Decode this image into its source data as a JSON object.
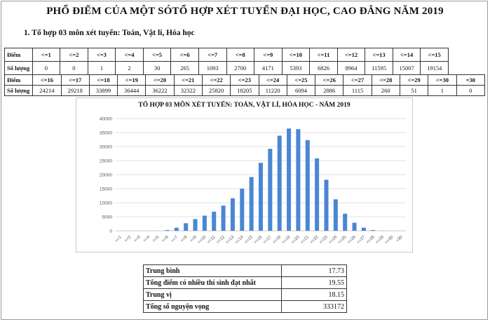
{
  "title": "PHỔ ĐIỂM CỦA MỘT SÓTỔ HỢP XÉT TUYỂN ĐẠI HỌC, CAO ĐẲNG NĂM 2019",
  "section": "1. Tổ hợp 03 môn xét tuyển: Toán, Vật lí, Hóa học",
  "table1": {
    "row_label_1": "Điểm",
    "row_label_2": "Số lượng",
    "headers": [
      "<=1",
      "<=2",
      "<=3",
      "<=4",
      "<=5",
      "<=6",
      "<=7",
      "<=8",
      "<=9",
      "<=10",
      "<=11",
      "<=12",
      "<=13",
      "<=14",
      "<=15"
    ],
    "values": [
      "0",
      "0",
      "1",
      "2",
      "30",
      "265",
      "1093",
      "2700",
      "4171",
      "5393",
      "6826",
      "8964",
      "11595",
      "15007",
      "19154"
    ]
  },
  "table2": {
    "row_label_1": "Điểm",
    "row_label_2": "Số lượng",
    "headers": [
      "<=16",
      "<=17",
      "<=18",
      "<=19",
      "<=20",
      "<=21",
      "<=22",
      "<=23",
      "<=24",
      "<=25",
      "<=26",
      "<=27",
      "<=28",
      "<=29",
      "<=30",
      "=30"
    ],
    "values": [
      "24214",
      "29218",
      "33899",
      "36444",
      "36222",
      "32322",
      "25820",
      "18205",
      "11220",
      "6094",
      "2886",
      "1115",
      "260",
      "51",
      "1",
      "0"
    ]
  },
  "chart_data": {
    "type": "bar",
    "title": "TỔ HỢP 03 MÔN XÉT TUYỂN: TOÁN, VẬT LÍ, HÓA HỌC - NĂM 2019",
    "categories": [
      "<=1",
      "<=2",
      "<=3",
      "<=4",
      "<=5",
      "<=6",
      "<=7",
      "<=8",
      "<=9",
      "<=10",
      "<=11",
      "<=12",
      "<=13",
      "<=14",
      "<=15",
      "<=16",
      "<=17",
      "<=18",
      "<=19",
      "<=20",
      "<=21",
      "<=22",
      "<=23",
      "<=24",
      "<=25",
      "<=26",
      "<=27",
      "<=28",
      "<=29",
      "<=30",
      "=30"
    ],
    "values": [
      0,
      0,
      1,
      2,
      30,
      265,
      1093,
      2700,
      4171,
      5393,
      6826,
      8964,
      11595,
      15007,
      19154,
      24214,
      29218,
      33899,
      36444,
      36222,
      32322,
      25820,
      18205,
      11220,
      6094,
      2886,
      1115,
      260,
      51,
      1,
      0
    ],
    "ylim": [
      0,
      40000
    ],
    "yticks": [
      0,
      5000,
      10000,
      15000,
      20000,
      25000,
      30000,
      35000,
      40000
    ],
    "grid": true,
    "bar_color": "#4a86d4",
    "xlabel": "",
    "ylabel": ""
  },
  "stats": [
    {
      "label": "Trung bình",
      "value": "17.73"
    },
    {
      "label": "Tổng điểm có nhiều thí sinh đạt nhất",
      "value": "19.55"
    },
    {
      "label": "Trung vị",
      "value": "18.15"
    },
    {
      "label": "Tổng số nguyện vọng",
      "value": "333172"
    }
  ]
}
